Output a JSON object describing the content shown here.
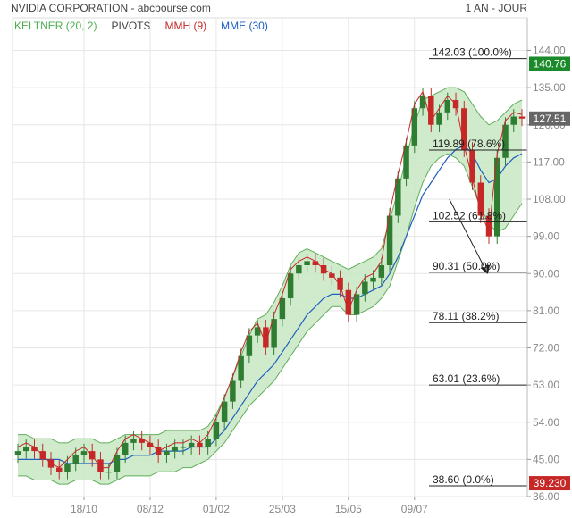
{
  "header": {
    "title": "NVIDIA CORPORATION - abcbourse.com",
    "period": "1 AN - JOUR"
  },
  "legend": [
    {
      "label": "KELTNER (20, 2)",
      "color": "#4caf50"
    },
    {
      "label": "PIVOTS",
      "color": "#444444"
    },
    {
      "label": "MMH (9)",
      "color": "#c62828"
    },
    {
      "label": "MME (30)",
      "color": "#1f5fbf"
    }
  ],
  "colors": {
    "keltner_fill": "#c8e8c3",
    "keltner_line": "#5fae5a",
    "candle_up": "#2e7d32",
    "candle_down": "#c62828",
    "mmh": "#c62828",
    "mme": "#1f5fbf",
    "fib_line": "#222222",
    "badge_high": "#1b8a2b",
    "badge_low": "#c62828",
    "badge_last": "#666666",
    "grid": "#e6e6e6"
  },
  "chart_data": {
    "type": "candlestick",
    "ylim": [
      36,
      148
    ],
    "y_ticks": [
      "144.00",
      "135.00",
      "126.00",
      "117.00",
      "108.00",
      "99.00",
      "90.00",
      "81.00",
      "72.00",
      "63.00",
      "54.00",
      "45.00",
      "36.00"
    ],
    "x_tick_labels": [
      "18/10",
      "08/12",
      "01/02",
      "25/03",
      "15/05",
      "09/07"
    ],
    "close_series": [
      47,
      48,
      47,
      45,
      43,
      42,
      44,
      46,
      47,
      45,
      42,
      42,
      46,
      49,
      50,
      49,
      48,
      46,
      47,
      48,
      48,
      49,
      48,
      50,
      54,
      59,
      64,
      70,
      75,
      77,
      72,
      79,
      84,
      90,
      92,
      93,
      92,
      90,
      89,
      86,
      80,
      85,
      88,
      89,
      92,
      104,
      113,
      121,
      130,
      133,
      126,
      129,
      132,
      130,
      120,
      112,
      104,
      99,
      118,
      126,
      128,
      127.51
    ],
    "mme_series": [
      45,
      45,
      45,
      45,
      45,
      45,
      44,
      44,
      44,
      44,
      44,
      44,
      45,
      45,
      46,
      46,
      46,
      47,
      47,
      47,
      47,
      48,
      48,
      48,
      50,
      52,
      55,
      58,
      61,
      64,
      66,
      68,
      71,
      74,
      77,
      80,
      82,
      84,
      85,
      85,
      84,
      84,
      85,
      86,
      87,
      90,
      94,
      99,
      104,
      109,
      112,
      115,
      118,
      120,
      121,
      119,
      115,
      112,
      113,
      116,
      118,
      119
    ],
    "keltner_upper": [
      51,
      51,
      50,
      50,
      50,
      49,
      49,
      50,
      50,
      50,
      49,
      49,
      50,
      51,
      51,
      51,
      51,
      51,
      52,
      52,
      52,
      52,
      52,
      53,
      56,
      60,
      65,
      70,
      75,
      79,
      80,
      83,
      87,
      92,
      95,
      96,
      95,
      94,
      93,
      92,
      91,
      92,
      93,
      94,
      96,
      103,
      110,
      118,
      126,
      132,
      133,
      134,
      135,
      135,
      134,
      131,
      128,
      126,
      127,
      129,
      131,
      132
    ],
    "keltner_lower": [
      41,
      41,
      40,
      40,
      40,
      39,
      39,
      40,
      40,
      40,
      39,
      39,
      40,
      41,
      41,
      41,
      41,
      42,
      42,
      42,
      43,
      43,
      44,
      45,
      47,
      49,
      52,
      55,
      58,
      60,
      62,
      64,
      67,
      70,
      73,
      76,
      78,
      80,
      82,
      82,
      80,
      80,
      81,
      82,
      84,
      87,
      93,
      99,
      106,
      112,
      116,
      118,
      119,
      118,
      116,
      111,
      106,
      102,
      100,
      101,
      104,
      107
    ],
    "fibonacci": [
      {
        "label": "142.03  (100.0%)",
        "value": 142.03
      },
      {
        "label": "119.89  (78.6%)",
        "value": 119.89
      },
      {
        "label": "102.52  (61.8%)",
        "value": 102.52
      },
      {
        "label": "90.31  (50.0%)",
        "value": 90.31
      },
      {
        "label": "78.11  (38.2%)",
        "value": 78.11
      },
      {
        "label": "63.01  (23.6%)",
        "value": 63.01
      },
      {
        "label": "38.60  (0.0%)",
        "value": 38.6
      }
    ],
    "badges": [
      {
        "label": "140.76",
        "value": 140.76,
        "kind": "high"
      },
      {
        "label": "127.51",
        "value": 127.51,
        "kind": "last"
      },
      {
        "label": "39.230",
        "value": 39.23,
        "kind": "low"
      }
    ],
    "arrow": {
      "from": [
        56,
        108
      ],
      "to": [
        59,
        90
      ]
    }
  }
}
